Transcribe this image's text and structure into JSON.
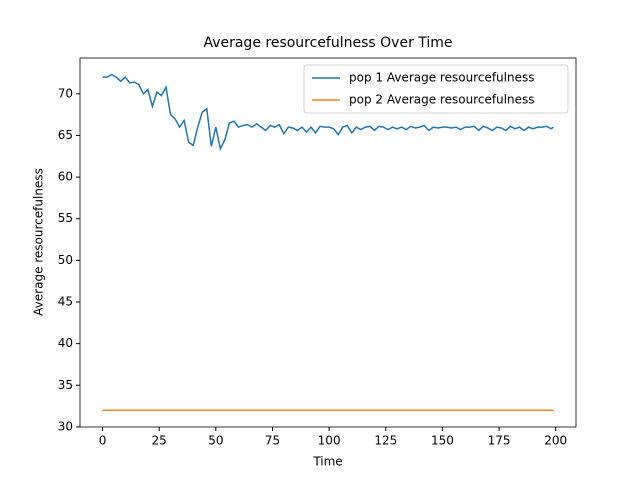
{
  "chart_data": {
    "type": "line",
    "title": "Average resourcefulness Over Time",
    "x_label": "Time",
    "y_label": "Average resourcefulness",
    "x": [
      0,
      2,
      4,
      6,
      8,
      10,
      12,
      14,
      16,
      18,
      20,
      22,
      24,
      26,
      28,
      30,
      32,
      34,
      36,
      38,
      40,
      42,
      44,
      46,
      48,
      50,
      52,
      54,
      56,
      58,
      60,
      62,
      64,
      66,
      68,
      70,
      72,
      74,
      76,
      78,
      80,
      82,
      84,
      86,
      88,
      90,
      92,
      94,
      96,
      98,
      100,
      102,
      104,
      106,
      108,
      110,
      112,
      114,
      116,
      118,
      120,
      122,
      124,
      126,
      128,
      130,
      132,
      134,
      136,
      138,
      140,
      142,
      144,
      146,
      148,
      150,
      152,
      154,
      156,
      158,
      160,
      162,
      164,
      166,
      168,
      170,
      172,
      174,
      176,
      178,
      180,
      182,
      184,
      186,
      188,
      190,
      192,
      194,
      196,
      198,
      199
    ],
    "series": [
      {
        "name": "pop 1 Average resourcefulness",
        "color": "#1f77b4",
        "values": [
          72,
          72,
          72.3,
          72,
          71.5,
          72,
          71.3,
          71.4,
          71.1,
          70,
          70.5,
          68.5,
          70.2,
          69.8,
          70.8,
          67.5,
          67,
          66,
          66.8,
          64.2,
          63.8,
          66,
          67.8,
          68.2,
          63.7,
          66,
          63.4,
          64.5,
          66.5,
          66.7,
          66,
          66.2,
          66.3,
          66,
          66.4,
          66,
          65.6,
          66.2,
          66,
          66.3,
          65.2,
          66,
          65.9,
          65.6,
          66,
          65.4,
          66,
          65.3,
          66.1,
          66,
          66,
          65.8,
          65.1,
          66,
          66.2,
          65.3,
          66,
          65.7,
          66,
          66.1,
          65.6,
          66.1,
          66,
          65.7,
          66,
          65.8,
          66,
          65.7,
          66.1,
          65.9,
          66,
          66.2,
          65.6,
          66,
          65.9,
          66,
          66,
          65.9,
          66,
          65.7,
          66,
          66,
          66.1,
          65.6,
          66.1,
          65.9,
          65.6,
          66,
          65.9,
          65.6,
          66.1,
          65.8,
          66,
          65.6,
          66,
          65.8,
          66,
          66,
          66.1,
          65.8,
          66
        ]
      },
      {
        "name": "pop 2 Average resourcefulness",
        "color": "#ff7f0e",
        "values": [
          32,
          32,
          32,
          32,
          32,
          32,
          32,
          32,
          32,
          32,
          32,
          32,
          32,
          32,
          32,
          32,
          32,
          32,
          32,
          32,
          32,
          32,
          32,
          32,
          32,
          32,
          32,
          32,
          32,
          32,
          32,
          32,
          32,
          32,
          32,
          32,
          32,
          32,
          32,
          32,
          32,
          32,
          32,
          32,
          32,
          32,
          32,
          32,
          32,
          32,
          32,
          32,
          32,
          32,
          32,
          32,
          32,
          32,
          32,
          32,
          32,
          32,
          32,
          32,
          32,
          32,
          32,
          32,
          32,
          32,
          32,
          32,
          32,
          32,
          32,
          32,
          32,
          32,
          32,
          32,
          32,
          32,
          32,
          32,
          32,
          32,
          32,
          32,
          32,
          32,
          32,
          32,
          32,
          32,
          32,
          32,
          32,
          32,
          32,
          32,
          32
        ]
      }
    ],
    "xlim": [
      -9.95,
      208.95
    ],
    "ylim": [
      29.99,
      74.3
    ],
    "xticks": [
      0,
      25,
      50,
      75,
      100,
      125,
      150,
      175,
      200
    ],
    "yticks": [
      30,
      35,
      40,
      45,
      50,
      55,
      60,
      65,
      70
    ],
    "legend": "upper right"
  }
}
